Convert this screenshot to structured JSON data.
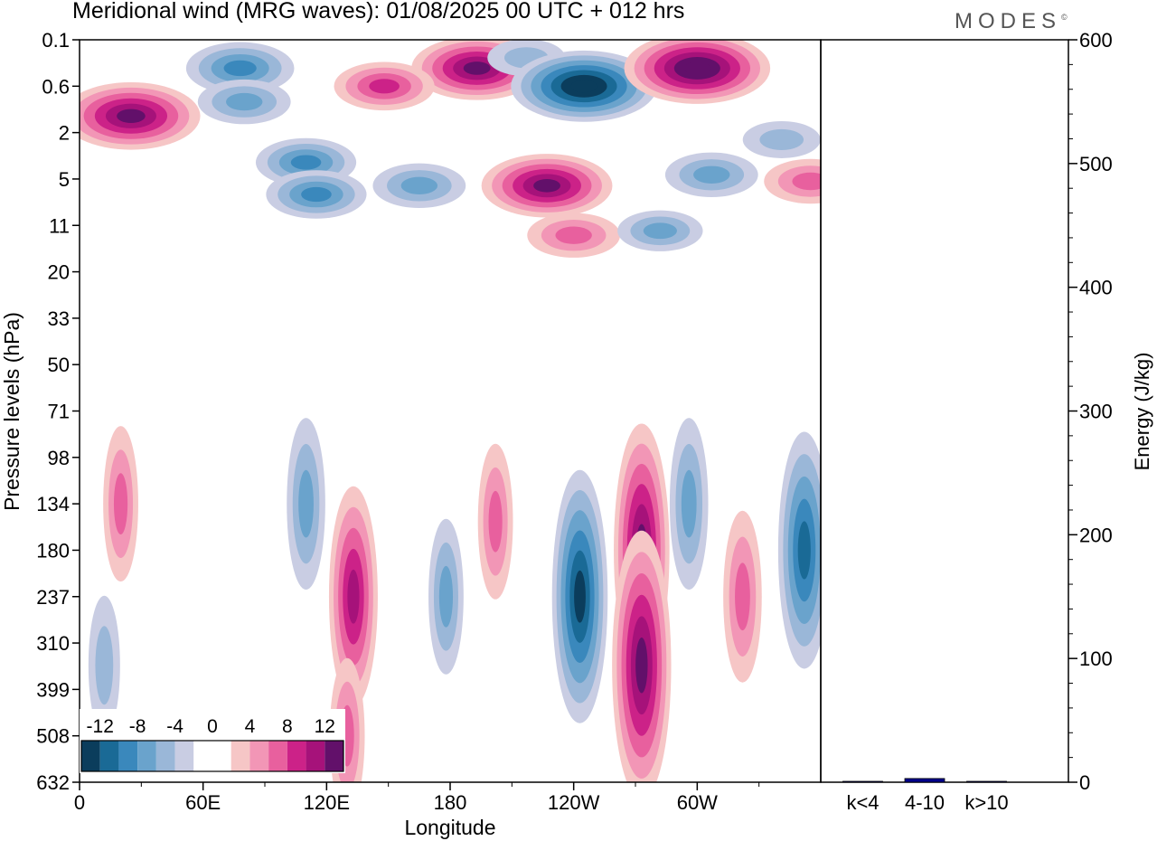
{
  "title": "Meridional wind (MRG waves):  01/08/2025  00 UTC  + 012 hrs",
  "brand": "MODES",
  "brand_mark": "©",
  "colors": {
    "neg": [
      "#0b3d5c",
      "#1a6a96",
      "#3a88bc",
      "#6aa3cc",
      "#9ab7d8",
      "#c9cde3"
    ],
    "pos": [
      "#f6c6c6",
      "#f296b6",
      "#e8609e",
      "#cc2288",
      "#a6127a",
      "#62106a"
    ],
    "bar": "#00008b"
  },
  "chart_data": [
    {
      "type": "heatmap",
      "title": "Meridional wind (MRG waves)",
      "xlabel": "Longitude",
      "ylabel": "Pressure levels (hPa)",
      "x_ticks": [
        "0",
        "60E",
        "120E",
        "180",
        "120W",
        "60W"
      ],
      "x_tick_degrees": [
        0,
        60,
        120,
        180,
        240,
        300
      ],
      "xlim": [
        0,
        360
      ],
      "y_ticks": [
        "0.1",
        "0.6",
        "2",
        "5",
        "11",
        "20",
        "33",
        "50",
        "71",
        "98",
        "134",
        "180",
        "237",
        "310",
        "399",
        "508",
        "632"
      ],
      "colorbar": {
        "labels": [
          "-12",
          "-8",
          "-4",
          "0",
          "4",
          "8",
          "12"
        ],
        "levels": [
          -14,
          -12,
          -10,
          -8,
          -6,
          -4,
          -2,
          2,
          4,
          6,
          8,
          10,
          12,
          14
        ]
      },
      "features": [
        {
          "lon": 25,
          "level": 1.3,
          "value": 13
        },
        {
          "lon": 78,
          "level": 0.3,
          "value": -9
        },
        {
          "lon": 80,
          "level": 0.9,
          "value": -7
        },
        {
          "lon": 110,
          "level": 3.6,
          "value": -8
        },
        {
          "lon": 115,
          "level": 6.5,
          "value": -8
        },
        {
          "lon": 165,
          "level": 5.6,
          "value": -7
        },
        {
          "lon": 193,
          "level": 0.3,
          "value": 12
        },
        {
          "lon": 148,
          "level": 0.6,
          "value": 8
        },
        {
          "lon": 217,
          "level": 0.2,
          "value": -5
        },
        {
          "lon": 245,
          "level": 0.6,
          "value": -14
        },
        {
          "lon": 227,
          "level": 5.6,
          "value": 12
        },
        {
          "lon": 240,
          "level": 12.5,
          "value": 7
        },
        {
          "lon": 300,
          "level": 0.3,
          "value": 14
        },
        {
          "lon": 307,
          "level": 4.6,
          "value": -7
        },
        {
          "lon": 282,
          "level": 11.8,
          "value": -6
        },
        {
          "lon": 341,
          "level": 2.3,
          "value": -5
        },
        {
          "lon": 355,
          "level": 5.2,
          "value": 7
        },
        {
          "lon": 20,
          "level": 134,
          "value": 6
        },
        {
          "lon": 110,
          "level": 134,
          "value": -7
        },
        {
          "lon": 133,
          "level": 237,
          "value": 10
        },
        {
          "lon": 178,
          "level": 237,
          "value": -6
        },
        {
          "lon": 202,
          "level": 150,
          "value": 6
        },
        {
          "lon": 243,
          "level": 237,
          "value": -12
        },
        {
          "lon": 273,
          "level": 180,
          "value": 12
        },
        {
          "lon": 273,
          "level": 350,
          "value": 13
        },
        {
          "lon": 296,
          "level": 134,
          "value": -7
        },
        {
          "lon": 322,
          "level": 237,
          "value": 7
        },
        {
          "lon": 352,
          "level": 180,
          "value": -11
        },
        {
          "lon": 130,
          "level": 508,
          "value": 6
        },
        {
          "lon": 12,
          "level": 350,
          "value": -5
        }
      ]
    },
    {
      "type": "bar",
      "categories": [
        "k<4",
        "4-10",
        "k>10"
      ],
      "values": [
        0.5,
        3,
        0.3
      ],
      "ylabel": "Energy (J/kg)",
      "ylim": [
        0,
        600
      ],
      "y_ticks": [
        "0",
        "100",
        "200",
        "300",
        "400",
        "500",
        "600"
      ]
    }
  ]
}
